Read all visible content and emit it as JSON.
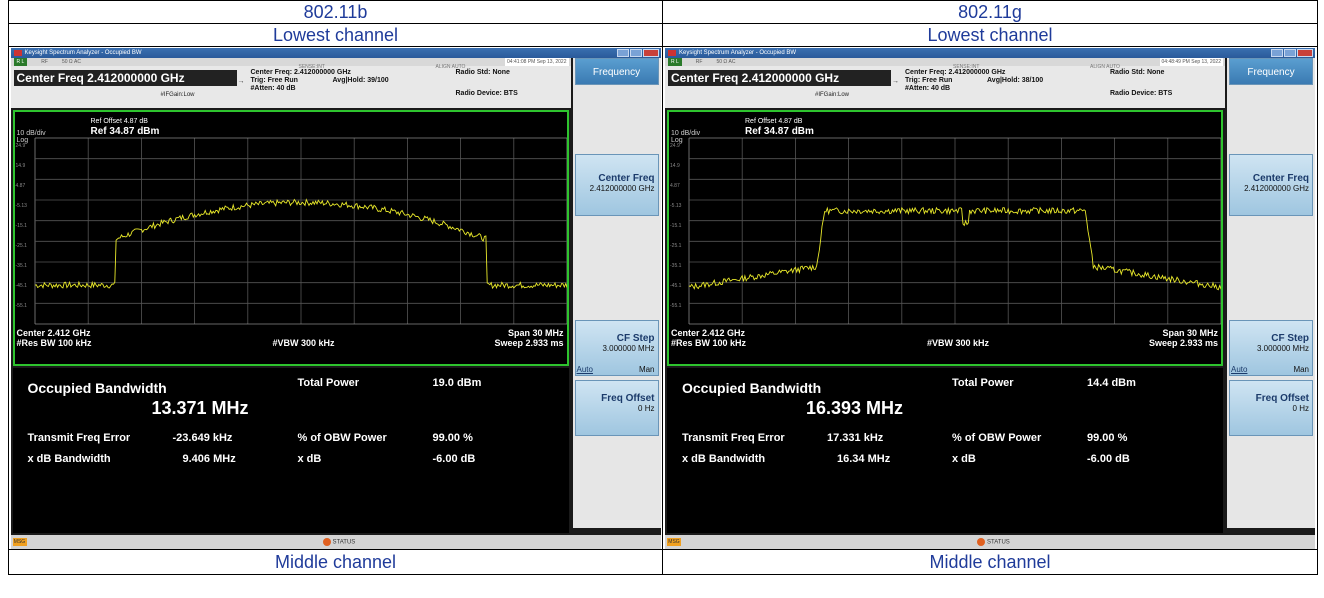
{
  "table": {
    "left_header": "802.11b",
    "right_header": "802.11g",
    "left_sub": "Lowest channel",
    "right_sub": "Lowest channel",
    "left_footer": "Middle channel",
    "right_footer": "Middle channel"
  },
  "left": {
    "window_title": "Keysight Spectrum Analyzer - Occupied BW",
    "status_rl": "R L",
    "status_rf": "RF",
    "status_imp": "50 Ω  AC",
    "sense": "SENSE:INT",
    "align": "ALIGN AUTO",
    "timestamp": "04:41:08 PM Sep 13, 2022",
    "center_freq_box": "Center Freq 2.412000000 GHz",
    "ifgain": "#IFGain:Low",
    "center_freq_info": "Center Freq: 2.412000000 GHz",
    "trig": "Trig: Free Run",
    "atten": "#Atten: 40 dB",
    "avg_hold": "Avg|Hold: 39/100",
    "radio_std": "Radio Std: None",
    "radio_dev": "Radio Device: BTS",
    "ref_offset": "Ref Offset 4.87 dB",
    "ref": "Ref 34.87 dBm",
    "div": "10 dB/div",
    "log": "Log",
    "y_ticks": [
      "24.9",
      "14.9",
      "4.87",
      "-5.13",
      "-15.1",
      "-25.1",
      "-35.1",
      "-45.1",
      "-55.1"
    ],
    "center": "Center  2.412 GHz",
    "res_bw": "#Res BW  100 kHz",
    "vbw": "#VBW  300 kHz",
    "span": "Span 30 MHz",
    "sweep": "Sweep  2.933 ms",
    "obw_label": "Occupied Bandwidth",
    "obw_value": "13.371 MHz",
    "total_power_label": "Total Power",
    "total_power": "19.0 dBm",
    "tfe_label": "Transmit Freq Error",
    "tfe": "-23.649 kHz",
    "pct_label": "% of OBW Power",
    "pct": "99.00 %",
    "xdb_bw_label": "x dB Bandwidth",
    "xdb_bw": "9.406 MHz",
    "xdb_label": "x dB",
    "xdb": "-6.00 dB",
    "softkeys": {
      "title": "Frequency",
      "center_freq": "Center Freq",
      "center_freq_val": "2.412000000 GHz",
      "cf_step": "CF Step",
      "cf_step_val": "3.000000 MHz",
      "auto": "Auto",
      "man": "Man",
      "freq_offset": "Freq Offset",
      "freq_offset_val": "0 Hz"
    },
    "msg": "MSG",
    "status": "STATUS"
  },
  "right": {
    "window_title": "Keysight Spectrum Analyzer - Occupied BW",
    "status_rl": "R L",
    "status_rf": "RF",
    "status_imp": "50 Ω  AC",
    "sense": "SENSE:INT",
    "align": "ALIGN AUTO",
    "timestamp": "04:48:49 PM Sep 13, 2022",
    "center_freq_box": "Center Freq 2.412000000 GHz",
    "ifgain": "#IFGain:Low",
    "center_freq_info": "Center Freq: 2.412000000 GHz",
    "trig": "Trig: Free Run",
    "atten": "#Atten: 40 dB",
    "avg_hold": "Avg|Hold: 38/100",
    "radio_std": "Radio Std: None",
    "radio_dev": "Radio Device: BTS",
    "ref_offset": "Ref Offset 4.87 dB",
    "ref": "Ref 34.87 dBm",
    "div": "10 dB/div",
    "log": "Log",
    "y_ticks": [
      "24.9",
      "14.9",
      "4.87",
      "-5.13",
      "-15.1",
      "-25.1",
      "-35.1",
      "-45.1",
      "-55.1"
    ],
    "center": "Center  2.412 GHz",
    "res_bw": "#Res BW  100 kHz",
    "vbw": "#VBW  300 kHz",
    "span": "Span 30 MHz",
    "sweep": "Sweep  2.933 ms",
    "obw_label": "Occupied Bandwidth",
    "obw_value": "16.393 MHz",
    "total_power_label": "Total Power",
    "total_power": "14.4 dBm",
    "tfe_label": "Transmit Freq Error",
    "tfe": "17.331 kHz",
    "pct_label": "% of OBW Power",
    "pct": "99.00 %",
    "xdb_bw_label": "x dB Bandwidth",
    "xdb_bw": "16.34 MHz",
    "xdb_label": "x dB",
    "xdb": "-6.00 dB",
    "softkeys": {
      "title": "Frequency",
      "center_freq": "Center Freq",
      "center_freq_val": "2.412000000 GHz",
      "cf_step": "CF Step",
      "cf_step_val": "3.000000 MHz",
      "auto": "Auto",
      "man": "Man",
      "freq_offset": "Freq Offset",
      "freq_offset_val": "0 Hz"
    },
    "msg": "MSG",
    "status": "STATUS"
  },
  "colors": {
    "trace": "#e8e82a",
    "graph_border": "#2ec42e",
    "header_text": "#1f3b9a"
  }
}
